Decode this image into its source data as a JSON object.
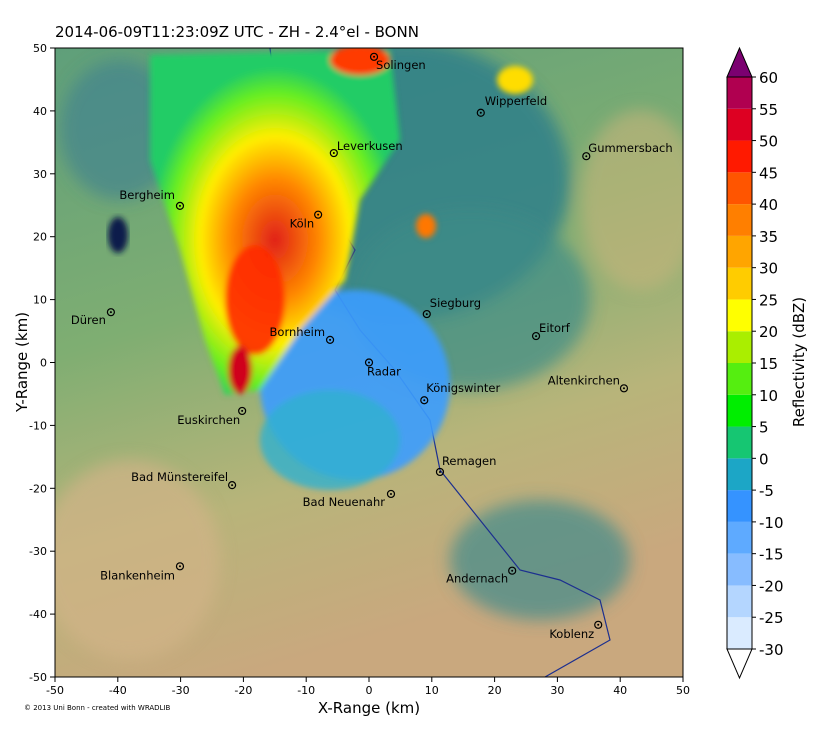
{
  "chart_data": {
    "type": "map",
    "title": "2014-06-09T11:23:09Z UTC - ZH - 2.4°el - BONN",
    "x_label": "X-Range (km)",
    "y_label": "Y-Range (km)",
    "credit": "© 2013 Uni Bonn - created with WRADLIB",
    "xlim": [
      -50,
      50
    ],
    "ylim": [
      -50,
      50
    ],
    "xticks": [
      -50,
      -40,
      -30,
      -20,
      -10,
      0,
      10,
      20,
      30,
      40,
      50
    ],
    "yticks": [
      -50,
      -40,
      -30,
      -20,
      -10,
      0,
      10,
      20,
      30,
      40,
      50
    ],
    "places": [
      {
        "name": "Solingen",
        "x": 0.8,
        "y": 48.6
      },
      {
        "name": "Wipperfeld",
        "x": 17.8,
        "y": 39.7
      },
      {
        "name": "Gummersbach",
        "x": 34.6,
        "y": 32.8
      },
      {
        "name": "Leverkusen",
        "x": -5.6,
        "y": 33.3
      },
      {
        "name": "Bergheim",
        "x": -30.1,
        "y": 24.9
      },
      {
        "name": "Köln",
        "x": -8.1,
        "y": 23.5
      },
      {
        "name": "Düren",
        "x": -41.1,
        "y": 8.0
      },
      {
        "name": "Siegburg",
        "x": 9.2,
        "y": 7.7
      },
      {
        "name": "Eitorf",
        "x": 26.6,
        "y": 4.2
      },
      {
        "name": "Bornheim",
        "x": -6.2,
        "y": 3.6
      },
      {
        "name": "Radar",
        "x": 0,
        "y": 0
      },
      {
        "name": "Königswinter",
        "x": 8.8,
        "y": -6.0
      },
      {
        "name": "Altenkirchen",
        "x": 40.6,
        "y": -4.1
      },
      {
        "name": "Euskirchen",
        "x": -20.2,
        "y": -7.7
      },
      {
        "name": "Remagen",
        "x": 11.3,
        "y": -17.4
      },
      {
        "name": "Bad Münstereifel",
        "x": -21.8,
        "y": -19.5
      },
      {
        "name": "Bad Neuenahr",
        "x": 3.5,
        "y": -20.9
      },
      {
        "name": "Blankenheim",
        "x": -30.1,
        "y": -32.4
      },
      {
        "name": "Andernach",
        "x": 22.8,
        "y": -33.1
      },
      {
        "name": "Koblenz",
        "x": 36.5,
        "y": -41.7
      }
    ],
    "colorbar": {
      "label": "Reflectivity (dBZ)",
      "ticks": [
        -30,
        -25,
        -20,
        -15,
        -10,
        -5,
        0,
        5,
        10,
        15,
        20,
        25,
        30,
        35,
        40,
        45,
        50,
        55,
        60
      ],
      "colors": [
        "#daebff",
        "#b4d6ff",
        "#87bcff",
        "#5eaaff",
        "#3593ff",
        "#1ca6c6",
        "#16c672",
        "#00ee00",
        "#55ee10",
        "#aaee00",
        "#ffff00",
        "#ffcc00",
        "#ffa500",
        "#ff7f00",
        "#ff5500",
        "#ff1a00",
        "#dd0022",
        "#b00050"
      ],
      "under_color": "#ffffff",
      "over_color": "#7b0070"
    }
  }
}
